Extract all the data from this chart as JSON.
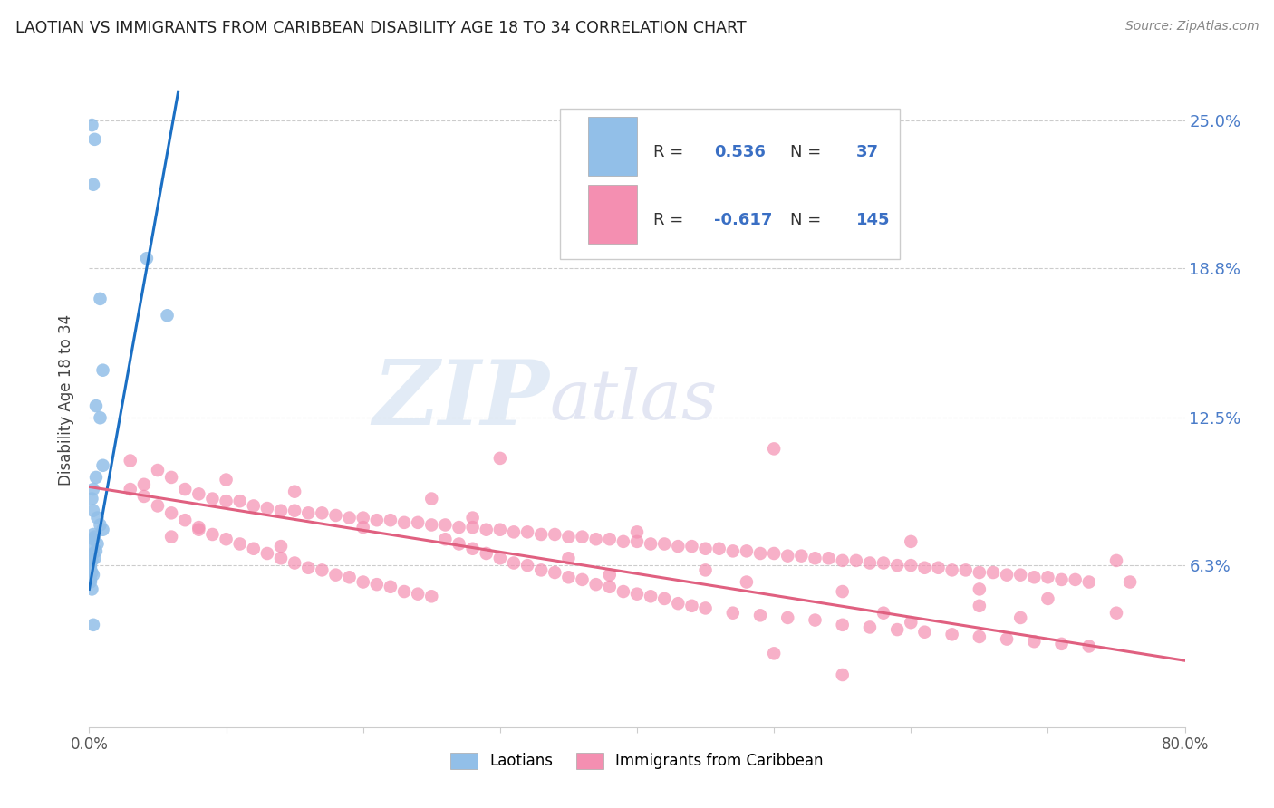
{
  "title": "LAOTIAN VS IMMIGRANTS FROM CARIBBEAN DISABILITY AGE 18 TO 34 CORRELATION CHART",
  "source": "Source: ZipAtlas.com",
  "ylabel": "Disability Age 18 to 34",
  "ytick_labels": [
    "6.3%",
    "12.5%",
    "18.8%",
    "25.0%"
  ],
  "ytick_values": [
    0.063,
    0.125,
    0.188,
    0.25
  ],
  "xlim": [
    0.0,
    0.8
  ],
  "ylim": [
    -0.005,
    0.27
  ],
  "watermark_zip": "ZIP",
  "watermark_atlas": "atlas",
  "laotian_color": "#92bfe8",
  "caribbean_color": "#f48fb1",
  "laotian_line_color": "#1a6fc4",
  "caribbean_line_color": "#e06080",
  "laotian_points": [
    [
      0.002,
      0.248
    ],
    [
      0.004,
      0.242
    ],
    [
      0.003,
      0.223
    ],
    [
      0.042,
      0.192
    ],
    [
      0.008,
      0.175
    ],
    [
      0.057,
      0.168
    ],
    [
      0.01,
      0.145
    ],
    [
      0.005,
      0.13
    ],
    [
      0.008,
      0.125
    ],
    [
      0.01,
      0.105
    ],
    [
      0.005,
      0.1
    ],
    [
      0.003,
      0.095
    ],
    [
      0.002,
      0.091
    ],
    [
      0.003,
      0.086
    ],
    [
      0.006,
      0.083
    ],
    [
      0.008,
      0.08
    ],
    [
      0.01,
      0.078
    ],
    [
      0.003,
      0.076
    ],
    [
      0.004,
      0.075
    ],
    [
      0.003,
      0.074
    ],
    [
      0.006,
      0.072
    ],
    [
      0.002,
      0.071
    ],
    [
      0.005,
      0.069
    ],
    [
      0.003,
      0.068
    ],
    [
      0.001,
      0.067
    ],
    [
      0.004,
      0.066
    ],
    [
      0.002,
      0.065
    ],
    [
      0.001,
      0.064
    ],
    [
      0.001,
      0.063
    ],
    [
      0.001,
      0.062
    ],
    [
      0.001,
      0.061
    ],
    [
      0.002,
      0.06
    ],
    [
      0.003,
      0.059
    ],
    [
      0.001,
      0.057
    ],
    [
      0.001,
      0.056
    ],
    [
      0.002,
      0.053
    ],
    [
      0.003,
      0.038
    ]
  ],
  "caribbean_points": [
    [
      0.03,
      0.107
    ],
    [
      0.05,
      0.103
    ],
    [
      0.06,
      0.1
    ],
    [
      0.04,
      0.097
    ],
    [
      0.07,
      0.095
    ],
    [
      0.08,
      0.093
    ],
    [
      0.09,
      0.091
    ],
    [
      0.1,
      0.09
    ],
    [
      0.11,
      0.09
    ],
    [
      0.12,
      0.088
    ],
    [
      0.13,
      0.087
    ],
    [
      0.14,
      0.086
    ],
    [
      0.15,
      0.086
    ],
    [
      0.16,
      0.085
    ],
    [
      0.17,
      0.085
    ],
    [
      0.18,
      0.084
    ],
    [
      0.19,
      0.083
    ],
    [
      0.2,
      0.083
    ],
    [
      0.21,
      0.082
    ],
    [
      0.22,
      0.082
    ],
    [
      0.23,
      0.081
    ],
    [
      0.24,
      0.081
    ],
    [
      0.25,
      0.08
    ],
    [
      0.26,
      0.08
    ],
    [
      0.27,
      0.079
    ],
    [
      0.28,
      0.079
    ],
    [
      0.29,
      0.078
    ],
    [
      0.3,
      0.078
    ],
    [
      0.31,
      0.077
    ],
    [
      0.32,
      0.077
    ],
    [
      0.33,
      0.076
    ],
    [
      0.34,
      0.076
    ],
    [
      0.35,
      0.075
    ],
    [
      0.36,
      0.075
    ],
    [
      0.37,
      0.074
    ],
    [
      0.38,
      0.074
    ],
    [
      0.39,
      0.073
    ],
    [
      0.4,
      0.073
    ],
    [
      0.41,
      0.072
    ],
    [
      0.42,
      0.072
    ],
    [
      0.43,
      0.071
    ],
    [
      0.44,
      0.071
    ],
    [
      0.45,
      0.07
    ],
    [
      0.46,
      0.07
    ],
    [
      0.47,
      0.069
    ],
    [
      0.48,
      0.069
    ],
    [
      0.49,
      0.068
    ],
    [
      0.5,
      0.068
    ],
    [
      0.51,
      0.067
    ],
    [
      0.52,
      0.067
    ],
    [
      0.53,
      0.066
    ],
    [
      0.54,
      0.066
    ],
    [
      0.55,
      0.065
    ],
    [
      0.56,
      0.065
    ],
    [
      0.57,
      0.064
    ],
    [
      0.58,
      0.064
    ],
    [
      0.59,
      0.063
    ],
    [
      0.6,
      0.063
    ],
    [
      0.61,
      0.062
    ],
    [
      0.62,
      0.062
    ],
    [
      0.63,
      0.061
    ],
    [
      0.64,
      0.061
    ],
    [
      0.65,
      0.06
    ],
    [
      0.66,
      0.06
    ],
    [
      0.67,
      0.059
    ],
    [
      0.68,
      0.059
    ],
    [
      0.69,
      0.058
    ],
    [
      0.7,
      0.058
    ],
    [
      0.71,
      0.057
    ],
    [
      0.72,
      0.057
    ],
    [
      0.73,
      0.056
    ],
    [
      0.03,
      0.095
    ],
    [
      0.04,
      0.092
    ],
    [
      0.05,
      0.088
    ],
    [
      0.06,
      0.085
    ],
    [
      0.07,
      0.082
    ],
    [
      0.08,
      0.079
    ],
    [
      0.09,
      0.076
    ],
    [
      0.1,
      0.074
    ],
    [
      0.11,
      0.072
    ],
    [
      0.12,
      0.07
    ],
    [
      0.13,
      0.068
    ],
    [
      0.14,
      0.066
    ],
    [
      0.15,
      0.064
    ],
    [
      0.16,
      0.062
    ],
    [
      0.17,
      0.061
    ],
    [
      0.18,
      0.059
    ],
    [
      0.19,
      0.058
    ],
    [
      0.2,
      0.056
    ],
    [
      0.21,
      0.055
    ],
    [
      0.22,
      0.054
    ],
    [
      0.23,
      0.052
    ],
    [
      0.24,
      0.051
    ],
    [
      0.25,
      0.05
    ],
    [
      0.26,
      0.074
    ],
    [
      0.27,
      0.072
    ],
    [
      0.28,
      0.07
    ],
    [
      0.29,
      0.068
    ],
    [
      0.3,
      0.066
    ],
    [
      0.31,
      0.064
    ],
    [
      0.32,
      0.063
    ],
    [
      0.33,
      0.061
    ],
    [
      0.34,
      0.06
    ],
    [
      0.35,
      0.058
    ],
    [
      0.36,
      0.057
    ],
    [
      0.37,
      0.055
    ],
    [
      0.38,
      0.054
    ],
    [
      0.39,
      0.052
    ],
    [
      0.4,
      0.051
    ],
    [
      0.41,
      0.05
    ],
    [
      0.42,
      0.049
    ],
    [
      0.43,
      0.047
    ],
    [
      0.44,
      0.046
    ],
    [
      0.45,
      0.045
    ],
    [
      0.47,
      0.043
    ],
    [
      0.49,
      0.042
    ],
    [
      0.51,
      0.041
    ],
    [
      0.53,
      0.04
    ],
    [
      0.55,
      0.038
    ],
    [
      0.57,
      0.037
    ],
    [
      0.59,
      0.036
    ],
    [
      0.61,
      0.035
    ],
    [
      0.63,
      0.034
    ],
    [
      0.65,
      0.033
    ],
    [
      0.67,
      0.032
    ],
    [
      0.69,
      0.031
    ],
    [
      0.71,
      0.03
    ],
    [
      0.73,
      0.029
    ],
    [
      0.5,
      0.112
    ],
    [
      0.3,
      0.108
    ],
    [
      0.4,
      0.077
    ],
    [
      0.2,
      0.079
    ],
    [
      0.6,
      0.073
    ],
    [
      0.55,
      0.052
    ],
    [
      0.65,
      0.046
    ],
    [
      0.45,
      0.061
    ],
    [
      0.35,
      0.066
    ],
    [
      0.25,
      0.091
    ],
    [
      0.15,
      0.094
    ],
    [
      0.1,
      0.099
    ],
    [
      0.08,
      0.078
    ],
    [
      0.5,
      0.026
    ],
    [
      0.55,
      0.017
    ],
    [
      0.6,
      0.039
    ],
    [
      0.65,
      0.053
    ],
    [
      0.7,
      0.049
    ],
    [
      0.75,
      0.043
    ],
    [
      0.06,
      0.075
    ],
    [
      0.14,
      0.071
    ],
    [
      0.28,
      0.083
    ],
    [
      0.38,
      0.059
    ],
    [
      0.48,
      0.056
    ],
    [
      0.58,
      0.043
    ],
    [
      0.68,
      0.041
    ],
    [
      0.75,
      0.065
    ],
    [
      0.76,
      0.056
    ]
  ],
  "lao_line_x": [
    0.0,
    0.065
  ],
  "lao_line_y_start": 0.053,
  "lao_line_y_end": 0.262,
  "car_line_x": [
    0.0,
    0.8
  ],
  "car_line_y_start": 0.096,
  "car_line_y_end": 0.023
}
